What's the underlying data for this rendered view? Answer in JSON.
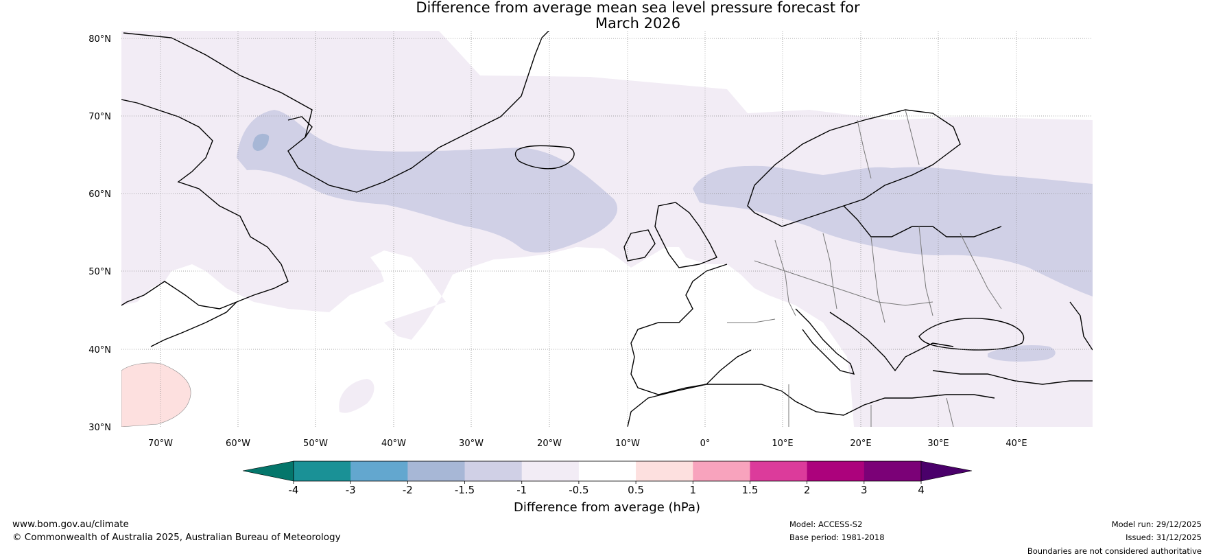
{
  "header": {
    "title_line1": "Difference from average mean sea level pressure forecast for",
    "title_line2": "March 2026"
  },
  "axes": {
    "lat_labels": [
      "80°N",
      "70°N",
      "60°N",
      "50°N",
      "40°N",
      "30°N"
    ],
    "lon_labels": [
      "70°W",
      "60°W",
      "50°W",
      "40°W",
      "30°W",
      "20°W",
      "10°W",
      "0°",
      "10°E",
      "20°E",
      "30°E",
      "40°E"
    ]
  },
  "colorbar": {
    "label": "Difference from average (hPa)",
    "ticks": [
      "-4",
      "-3",
      "-2",
      "-1.5",
      "-1",
      "-0.5",
      "0.5",
      "1",
      "1.5",
      "2",
      "3",
      "4"
    ],
    "colors": [
      "#1a9196",
      "#63a7cf",
      "#a7b7d6",
      "#d0d0e6",
      "#f2ecf5",
      "#ffffff",
      "#fde0df",
      "#f8a3bd",
      "#dc3b9b",
      "#ac027c",
      "#7b0177"
    ],
    "under_color": "#04766b",
    "over_color": "#4a006a"
  },
  "footer": {
    "website": "www.bom.gov.au/climate",
    "copyright": "© Commonwealth of Australia 2025, Australian Bureau of Meteorology",
    "model": "Model: ACCESS-S2",
    "base_period": "Base period: 1981-2018",
    "model_run": "Model run: 29/12/2025",
    "issued": "Issued: 31/12/2025",
    "disclaimer": "Boundaries are not considered authoritative"
  }
}
